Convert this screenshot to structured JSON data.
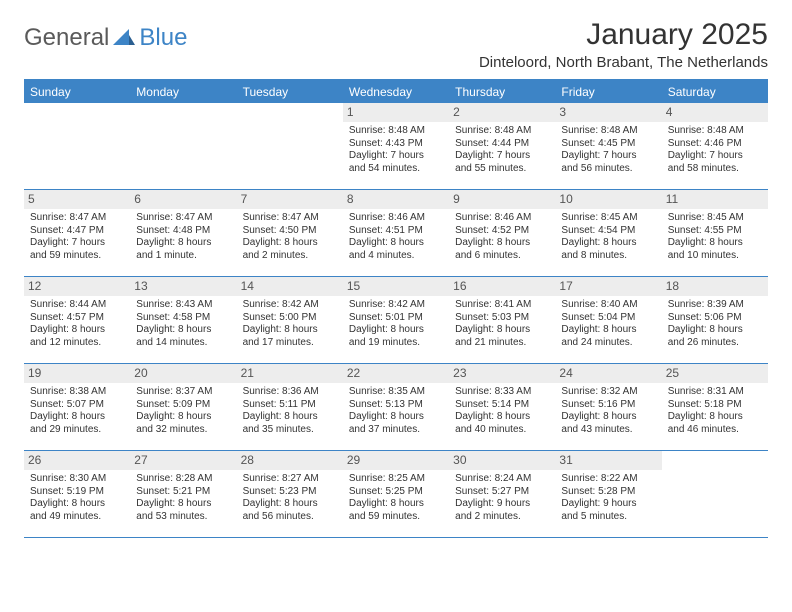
{
  "logo": {
    "general": "General",
    "blue": "Blue"
  },
  "title": "January 2025",
  "location": "Dinteloord, North Brabant, The Netherlands",
  "colors": {
    "accent": "#3d84c6",
    "dayNumBg": "#ededed",
    "text": "#333333",
    "background": "#ffffff"
  },
  "daysOfWeek": [
    "Sunday",
    "Monday",
    "Tuesday",
    "Wednesday",
    "Thursday",
    "Friday",
    "Saturday"
  ],
  "weeks": [
    [
      {
        "n": "",
        "empty": true
      },
      {
        "n": "",
        "empty": true
      },
      {
        "n": "",
        "empty": true
      },
      {
        "n": "1",
        "sunrise": "Sunrise: 8:48 AM",
        "sunset": "Sunset: 4:43 PM",
        "daylight": "Daylight: 7 hours and 54 minutes."
      },
      {
        "n": "2",
        "sunrise": "Sunrise: 8:48 AM",
        "sunset": "Sunset: 4:44 PM",
        "daylight": "Daylight: 7 hours and 55 minutes."
      },
      {
        "n": "3",
        "sunrise": "Sunrise: 8:48 AM",
        "sunset": "Sunset: 4:45 PM",
        "daylight": "Daylight: 7 hours and 56 minutes."
      },
      {
        "n": "4",
        "sunrise": "Sunrise: 8:48 AM",
        "sunset": "Sunset: 4:46 PM",
        "daylight": "Daylight: 7 hours and 58 minutes."
      }
    ],
    [
      {
        "n": "5",
        "sunrise": "Sunrise: 8:47 AM",
        "sunset": "Sunset: 4:47 PM",
        "daylight": "Daylight: 7 hours and 59 minutes."
      },
      {
        "n": "6",
        "sunrise": "Sunrise: 8:47 AM",
        "sunset": "Sunset: 4:48 PM",
        "daylight": "Daylight: 8 hours and 1 minute."
      },
      {
        "n": "7",
        "sunrise": "Sunrise: 8:47 AM",
        "sunset": "Sunset: 4:50 PM",
        "daylight": "Daylight: 8 hours and 2 minutes."
      },
      {
        "n": "8",
        "sunrise": "Sunrise: 8:46 AM",
        "sunset": "Sunset: 4:51 PM",
        "daylight": "Daylight: 8 hours and 4 minutes."
      },
      {
        "n": "9",
        "sunrise": "Sunrise: 8:46 AM",
        "sunset": "Sunset: 4:52 PM",
        "daylight": "Daylight: 8 hours and 6 minutes."
      },
      {
        "n": "10",
        "sunrise": "Sunrise: 8:45 AM",
        "sunset": "Sunset: 4:54 PM",
        "daylight": "Daylight: 8 hours and 8 minutes."
      },
      {
        "n": "11",
        "sunrise": "Sunrise: 8:45 AM",
        "sunset": "Sunset: 4:55 PM",
        "daylight": "Daylight: 8 hours and 10 minutes."
      }
    ],
    [
      {
        "n": "12",
        "sunrise": "Sunrise: 8:44 AM",
        "sunset": "Sunset: 4:57 PM",
        "daylight": "Daylight: 8 hours and 12 minutes."
      },
      {
        "n": "13",
        "sunrise": "Sunrise: 8:43 AM",
        "sunset": "Sunset: 4:58 PM",
        "daylight": "Daylight: 8 hours and 14 minutes."
      },
      {
        "n": "14",
        "sunrise": "Sunrise: 8:42 AM",
        "sunset": "Sunset: 5:00 PM",
        "daylight": "Daylight: 8 hours and 17 minutes."
      },
      {
        "n": "15",
        "sunrise": "Sunrise: 8:42 AM",
        "sunset": "Sunset: 5:01 PM",
        "daylight": "Daylight: 8 hours and 19 minutes."
      },
      {
        "n": "16",
        "sunrise": "Sunrise: 8:41 AM",
        "sunset": "Sunset: 5:03 PM",
        "daylight": "Daylight: 8 hours and 21 minutes."
      },
      {
        "n": "17",
        "sunrise": "Sunrise: 8:40 AM",
        "sunset": "Sunset: 5:04 PM",
        "daylight": "Daylight: 8 hours and 24 minutes."
      },
      {
        "n": "18",
        "sunrise": "Sunrise: 8:39 AM",
        "sunset": "Sunset: 5:06 PM",
        "daylight": "Daylight: 8 hours and 26 minutes."
      }
    ],
    [
      {
        "n": "19",
        "sunrise": "Sunrise: 8:38 AM",
        "sunset": "Sunset: 5:07 PM",
        "daylight": "Daylight: 8 hours and 29 minutes."
      },
      {
        "n": "20",
        "sunrise": "Sunrise: 8:37 AM",
        "sunset": "Sunset: 5:09 PM",
        "daylight": "Daylight: 8 hours and 32 minutes."
      },
      {
        "n": "21",
        "sunrise": "Sunrise: 8:36 AM",
        "sunset": "Sunset: 5:11 PM",
        "daylight": "Daylight: 8 hours and 35 minutes."
      },
      {
        "n": "22",
        "sunrise": "Sunrise: 8:35 AM",
        "sunset": "Sunset: 5:13 PM",
        "daylight": "Daylight: 8 hours and 37 minutes."
      },
      {
        "n": "23",
        "sunrise": "Sunrise: 8:33 AM",
        "sunset": "Sunset: 5:14 PM",
        "daylight": "Daylight: 8 hours and 40 minutes."
      },
      {
        "n": "24",
        "sunrise": "Sunrise: 8:32 AM",
        "sunset": "Sunset: 5:16 PM",
        "daylight": "Daylight: 8 hours and 43 minutes."
      },
      {
        "n": "25",
        "sunrise": "Sunrise: 8:31 AM",
        "sunset": "Sunset: 5:18 PM",
        "daylight": "Daylight: 8 hours and 46 minutes."
      }
    ],
    [
      {
        "n": "26",
        "sunrise": "Sunrise: 8:30 AM",
        "sunset": "Sunset: 5:19 PM",
        "daylight": "Daylight: 8 hours and 49 minutes."
      },
      {
        "n": "27",
        "sunrise": "Sunrise: 8:28 AM",
        "sunset": "Sunset: 5:21 PM",
        "daylight": "Daylight: 8 hours and 53 minutes."
      },
      {
        "n": "28",
        "sunrise": "Sunrise: 8:27 AM",
        "sunset": "Sunset: 5:23 PM",
        "daylight": "Daylight: 8 hours and 56 minutes."
      },
      {
        "n": "29",
        "sunrise": "Sunrise: 8:25 AM",
        "sunset": "Sunset: 5:25 PM",
        "daylight": "Daylight: 8 hours and 59 minutes."
      },
      {
        "n": "30",
        "sunrise": "Sunrise: 8:24 AM",
        "sunset": "Sunset: 5:27 PM",
        "daylight": "Daylight: 9 hours and 2 minutes."
      },
      {
        "n": "31",
        "sunrise": "Sunrise: 8:22 AM",
        "sunset": "Sunset: 5:28 PM",
        "daylight": "Daylight: 9 hours and 5 minutes."
      },
      {
        "n": "",
        "empty": true
      }
    ]
  ]
}
